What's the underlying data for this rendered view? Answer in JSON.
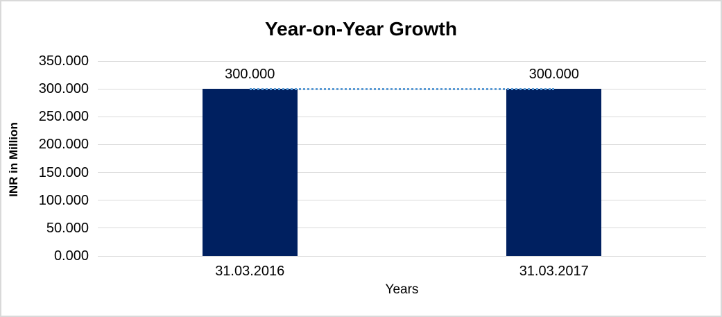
{
  "chart_data": {
    "type": "bar",
    "title": "Year-on-Year Growth",
    "xlabel": "Years",
    "ylabel": "INR in Million",
    "categories": [
      "31.03.2016",
      "31.03.2017"
    ],
    "series": [
      {
        "name": "INR in Million",
        "type": "bar",
        "values": [
          300.0,
          300.0
        ],
        "data_labels": [
          "300.000",
          "300.000"
        ],
        "color": "#002060"
      },
      {
        "name": "trendline",
        "type": "dotted-line",
        "values": [
          300.0,
          300.0
        ],
        "color": "#5B9BD5"
      }
    ],
    "ylim": [
      0,
      350
    ],
    "yticks": [
      0,
      50,
      100,
      150,
      200,
      250,
      300,
      350
    ],
    "ytick_labels": [
      "0.000",
      "50.000",
      "100.000",
      "150.000",
      "200.000",
      "250.000",
      "300.000",
      "350.000"
    ],
    "grid": true,
    "legend_position": "none"
  },
  "colors": {
    "bar": "#002060",
    "trendline": "#5B9BD5",
    "gridline": "#D9D9D9",
    "axis_line": "#D9D9D9",
    "frame_border": "#D9D9D9",
    "text": "#000000",
    "background": "#FFFFFF"
  }
}
